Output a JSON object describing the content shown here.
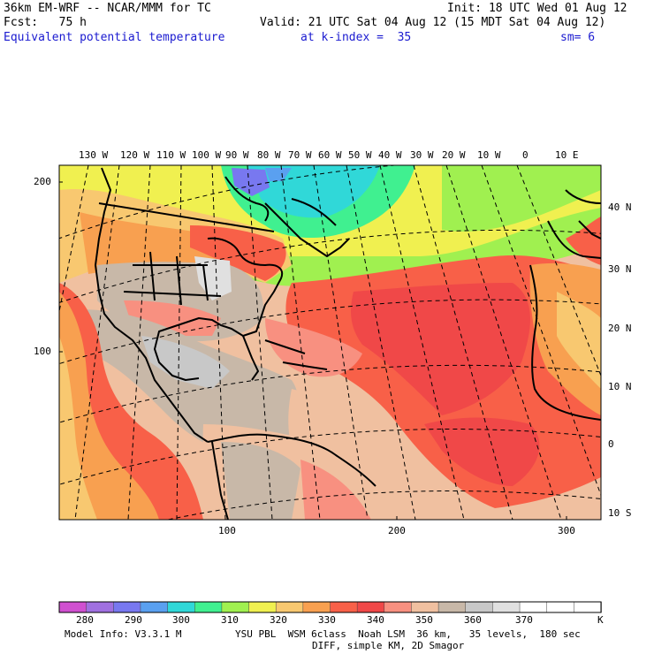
{
  "header": {
    "model": "36km EM-WRF -- NCAR/MMM for TC",
    "init": "Init: 18 UTC Wed 01 Aug 12",
    "fcst": "Fcst:   75 h",
    "valid": "Valid: 21 UTC Sat 04 Aug 12 (15 MDT Sat 04 Aug 12)",
    "field": "Equivalent potential temperature",
    "level": "at k-index =  35",
    "smooth": "sm= 6"
  },
  "top_lon_labels": [
    "130 W",
    "120 W",
    "110 W",
    "100 W",
    "90 W",
    "80 W",
    "70 W",
    "60 W",
    "50 W",
    "40 W",
    "30 W",
    "20 W",
    "10 W",
    "0",
    "10 E"
  ],
  "right_lat_labels": [
    "40 N",
    "30 N",
    "20 N",
    "10 N",
    "0",
    "10 S"
  ],
  "left_grid_labels": [
    "200",
    "100"
  ],
  "bottom_grid_labels": [
    "100",
    "200",
    "300"
  ],
  "colorbar": {
    "colors": [
      "#d050d0",
      "#a070e0",
      "#7878f0",
      "#5aa0f0",
      "#30d8d8",
      "#40f090",
      "#a0f050",
      "#f0f050",
      "#f8c870",
      "#f8a050",
      "#f86048",
      "#f04848",
      "#f89080",
      "#f0c0a0",
      "#c8b8a8",
      "#c8c8c8",
      "#e0e0e0",
      "#ffffff",
      "#ffffff",
      "#ffffff"
    ],
    "labels": [
      "280",
      "290",
      "300",
      "310",
      "320",
      "330",
      "340",
      "350",
      "360",
      "370"
    ],
    "unit": "K"
  },
  "footer": {
    "model_info": "Model Info: V3.3.1 M",
    "physics": "YSU PBL  WSM 6class  Noah LSM  36 km,   35 levels,  180 sec",
    "diff": "DIFF, simple KM, 2D Smagor"
  }
}
